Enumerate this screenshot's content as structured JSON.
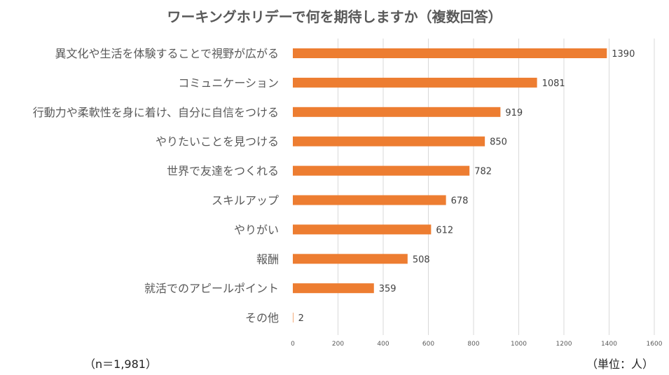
{
  "chart_data": {
    "type": "bar",
    "orientation": "horizontal",
    "title": "ワーキングホリデーで何を期待しますか（複数回答）",
    "categories": [
      "異文化や生活を体験することで視野が広がる",
      "コミュニケーション",
      "行動力や柔軟性を身に着け、自分に自信をつける",
      "やりたいことを見つける",
      "世界で友達をつくれる",
      "スキルアップ",
      "やりがい",
      "報酬",
      "就活でのアピールポイント",
      "その他"
    ],
    "values": [
      1390,
      1081,
      919,
      850,
      782,
      678,
      612,
      508,
      359,
      2
    ],
    "xlim": [
      0,
      1600
    ],
    "xticks": [
      0,
      200,
      400,
      600,
      800,
      1000,
      1200,
      1400,
      1600
    ],
    "grid": true,
    "data_labels": true,
    "bar_color": "#ED7D31",
    "grid_color": "#D9D9D9"
  },
  "notes": {
    "sample": "（n＝1,981）",
    "unit": "（単位：人）"
  }
}
